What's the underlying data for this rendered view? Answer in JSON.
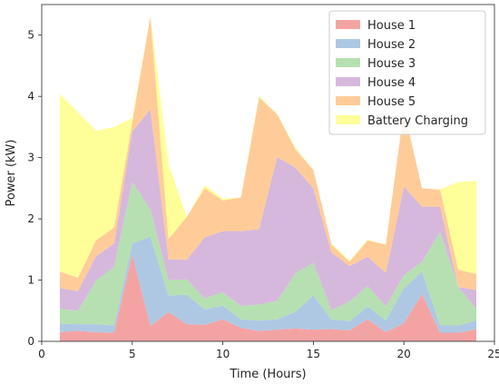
{
  "chart_data": {
    "type": "area",
    "stacked": true,
    "xlabel": "Time (Hours)",
    "ylabel": "Power (kW)",
    "xlim": [
      0,
      25
    ],
    "ylim": [
      0,
      5.5
    ],
    "xticks": [
      "0",
      "5",
      "10",
      "15",
      "20",
      "25"
    ],
    "yticks": [
      "0",
      "1",
      "2",
      "3",
      "4",
      "5"
    ],
    "grid": false,
    "legend_position": "top-right",
    "x": [
      1,
      2,
      3,
      4,
      5,
      6,
      7,
      8,
      9,
      10,
      11,
      12,
      13,
      14,
      15,
      16,
      17,
      18,
      19,
      20,
      21,
      22,
      23,
      24
    ],
    "series": [
      {
        "name": "House 1",
        "color": "#f4a3a3",
        "values": [
          0.15,
          0.17,
          0.15,
          0.14,
          1.42,
          0.25,
          0.48,
          0.28,
          0.27,
          0.36,
          0.22,
          0.17,
          0.19,
          0.21,
          0.19,
          0.2,
          0.18,
          0.36,
          0.15,
          0.3,
          0.77,
          0.14,
          0.14,
          0.2
        ]
      },
      {
        "name": "House 2",
        "color": "#aec8e4",
        "values": [
          0.14,
          0.11,
          0.13,
          0.12,
          0.18,
          1.46,
          0.27,
          0.48,
          0.25,
          0.22,
          0.14,
          0.17,
          0.17,
          0.27,
          0.56,
          0.16,
          0.15,
          0.21,
          0.19,
          0.57,
          0.37,
          0.12,
          0.12,
          0.14
        ]
      },
      {
        "name": "House 3",
        "color": "#b6e0b1",
        "values": [
          0.24,
          0.22,
          0.71,
          0.96,
          1.0,
          0.44,
          0.25,
          0.25,
          0.18,
          0.22,
          0.22,
          0.26,
          0.3,
          0.63,
          0.53,
          0.15,
          0.32,
          0.33,
          0.23,
          0.21,
          0.16,
          1.53,
          0.63,
          0.19
        ]
      },
      {
        "name": "House 4",
        "color": "#d6b8dc",
        "values": [
          0.34,
          0.32,
          0.4,
          0.38,
          0.83,
          1.64,
          0.34,
          0.32,
          1.0,
          1.0,
          1.22,
          1.23,
          2.35,
          1.73,
          1.22,
          0.94,
          0.58,
          0.48,
          0.55,
          1.45,
          0.9,
          0.41,
          0.0,
          0.31
        ]
      },
      {
        "name": "House 5",
        "color": "#ffcc99",
        "values": [
          0.27,
          0.22,
          0.26,
          0.26,
          0.15,
          1.52,
          0.33,
          0.7,
          0.8,
          0.5,
          0.55,
          2.15,
          0.7,
          0.3,
          0.3,
          0.13,
          0.07,
          0.27,
          0.46,
          1.25,
          0.3,
          0.28,
          0.28,
          0.26
        ]
      },
      {
        "name": "Battery Charging",
        "color": "#ffff99",
        "values": [
          2.9,
          2.7,
          1.79,
          1.64,
          0.07,
          0.0,
          1.23,
          0.0,
          0.05,
          0.03,
          0.0,
          0.03,
          0.0,
          0.03,
          0.0,
          0.02,
          0.02,
          0.01,
          0.0,
          0.0,
          0.0,
          0.0,
          1.43,
          1.52
        ]
      }
    ]
  }
}
